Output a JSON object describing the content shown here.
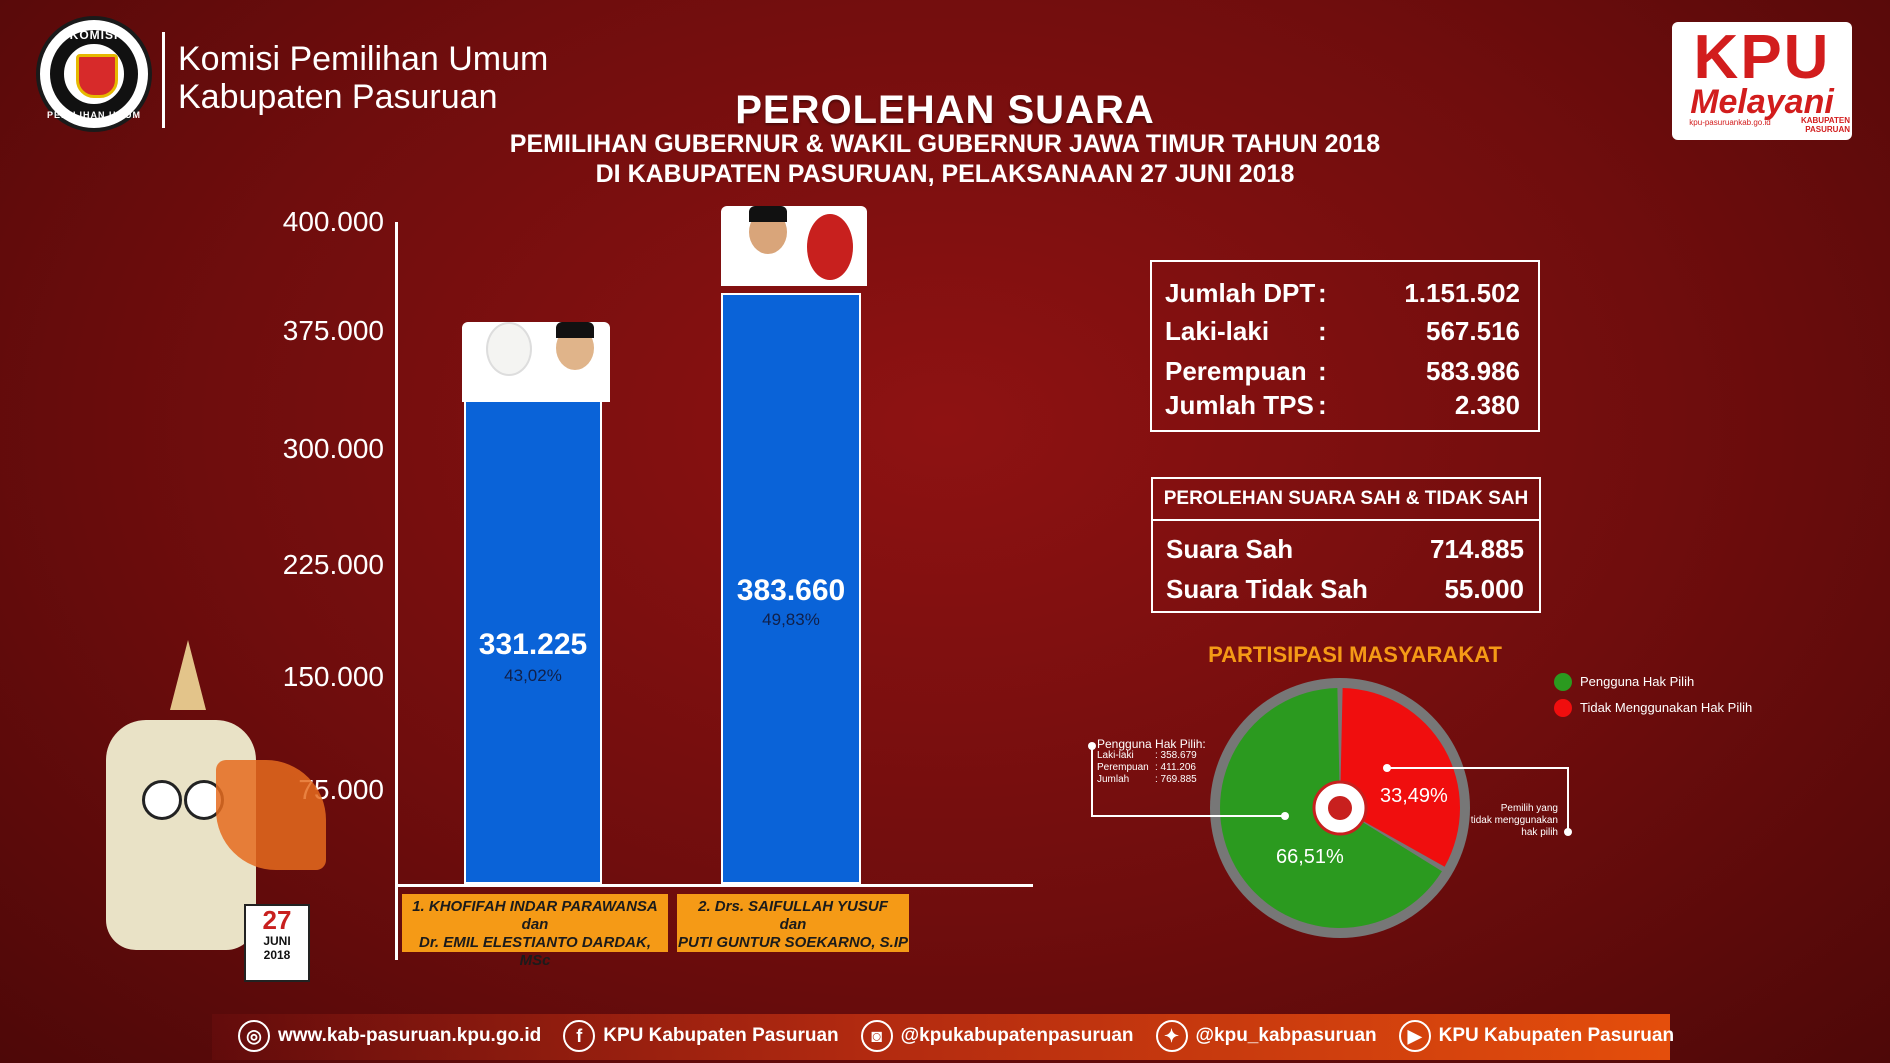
{
  "header": {
    "org_line1": "Komisi Pemilihan Umum",
    "org_line2": "Kabupaten Pasuruan",
    "seal_top": "KOMISI",
    "seal_bottom": "PEMILIHAN UMUM",
    "brand_main": "KPU",
    "brand_sub": "Melayani",
    "brand_url": "kpu-pasuruankab.go.id",
    "brand_kab_1": "KABUPATEN",
    "brand_kab_2": "PASURUAN"
  },
  "title": "PEROLEHAN SUARA",
  "subtitle_1": "PEMILIHAN GUBERNUR & WAKIL GUBERNUR JAWA TIMUR TAHUN 2018",
  "subtitle_2": "DI KABUPATEN PASURUAN, PELAKSANAAN 27 JUNI 2018",
  "chart_data": [
    {
      "type": "bar",
      "categories": [
        "1. KHOFIFAH INDAR PARAWANSA dan Dr. EMIL ELESTIANTO DARDAK, MSc",
        "2. Drs. SAIFULLAH YUSUF dan PUTI GUNTUR SOEKARNO, S.IP"
      ],
      "values": [
        331225,
        383660
      ],
      "value_labels": [
        "331.225",
        "383.660"
      ],
      "percent_labels": [
        "43,02%",
        "49,83%"
      ],
      "yticks": [
        "400.000",
        "375.000",
        "300.000",
        "225.000",
        "150.000",
        "75.000"
      ],
      "ytick_values": [
        400000,
        375000,
        300000,
        225000,
        150000,
        75000
      ],
      "ylim": [
        0,
        400000
      ],
      "bar_color": "#0a63d8"
    },
    {
      "type": "pie",
      "title": "PARTISIPASI MASYARAKAT",
      "labels": [
        "Pengguna Hak Pilih",
        "Tidak Menggunakan Hak Pilih"
      ],
      "values": [
        66.51,
        33.49
      ],
      "value_labels": [
        "66,51%",
        "33,49%"
      ],
      "colors": [
        "#2b9a1f",
        "#f00e0e"
      ]
    }
  ],
  "candidates": [
    {
      "line1": "1. KHOFIFAH INDAR PARAWANSA",
      "line2": "dan",
      "line3": "Dr. EMIL ELESTIANTO DARDAK, MSc"
    },
    {
      "line1": "2. Drs. SAIFULLAH YUSUF",
      "line2": "dan",
      "line3": "PUTI GUNTUR SOEKARNO, S.IP"
    }
  ],
  "dpt": [
    {
      "label": "Jumlah DPT",
      "value": "1.151.502"
    },
    {
      "label": "Laki-laki",
      "value": "567.516"
    },
    {
      "label": "Perempuan",
      "value": "583.986"
    },
    {
      "label": "Jumlah TPS",
      "value": "2.380"
    }
  ],
  "colon": ":",
  "suara": {
    "heading": "PEROLEHAN SUARA SAH & TIDAK SAH",
    "rows": [
      {
        "label": "Suara Sah",
        "value": "714.885"
      },
      {
        "label": "Suara Tidak Sah",
        "value": "55.000"
      }
    ]
  },
  "pie_notes": {
    "left_title": "Pengguna Hak Pilih:",
    "left_rows": [
      {
        "label": "Laki-laki",
        "value": ": 358.679"
      },
      {
        "label": "Perempuan",
        "value": ": 411.206"
      },
      {
        "label": "Jumlah",
        "value": ": 769.885"
      }
    ],
    "right_1": "Pemilih yang",
    "right_2": "tidak menggunakan",
    "right_3": "hak pilih"
  },
  "mascot_date": {
    "day": "27",
    "month": "JUNI",
    "year": "2018"
  },
  "footer": [
    {
      "icon": "globe-icon",
      "text": "www.kab-pasuruan.kpu.go.id"
    },
    {
      "icon": "facebook-icon",
      "text": "KPU Kabupaten Pasuruan"
    },
    {
      "icon": "instagram-icon",
      "text": "@kpukabupatenpasuruan"
    },
    {
      "icon": "twitter-icon",
      "text": "@kpu_kabpasuruan"
    },
    {
      "icon": "youtube-icon",
      "text": "KPU Kabupaten Pasuruan"
    }
  ]
}
